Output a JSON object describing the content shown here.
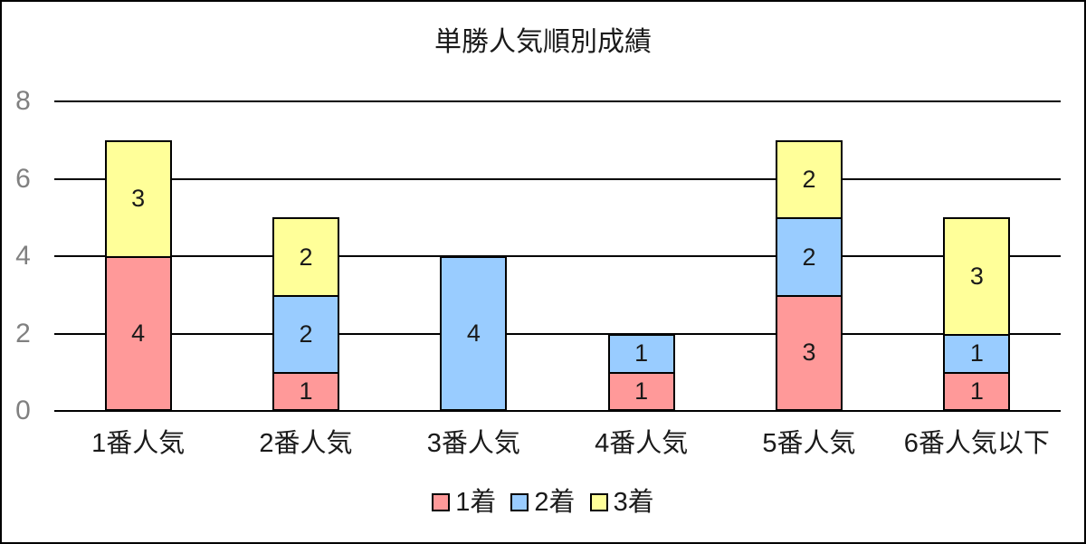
{
  "title": "単勝人気順別成績",
  "colors": {
    "first_place": "#FF9999",
    "second_place": "#99CCFF",
    "third_place": "#FFFF99",
    "grid": "#000000",
    "axis_tick_label": "#808080",
    "text": "#1a1a1a",
    "background": "#ffffff"
  },
  "chart_data": {
    "type": "bar",
    "stacked": true,
    "title": "単勝人気順別成績",
    "categories": [
      "1番人気",
      "2番人気",
      "3番人気",
      "4番人気",
      "5番人気",
      "6番人気以下"
    ],
    "series": [
      {
        "name": "1着",
        "color": "#FF9999",
        "values": [
          4,
          1,
          0,
          1,
          3,
          1
        ]
      },
      {
        "name": "2着",
        "color": "#99CCFF",
        "values": [
          0,
          2,
          4,
          1,
          2,
          1
        ]
      },
      {
        "name": "3着",
        "color": "#FFFF99",
        "values": [
          3,
          2,
          0,
          0,
          2,
          3
        ]
      }
    ],
    "xlabel": "",
    "ylabel": "",
    "ylim": [
      0,
      8
    ],
    "yticks": [
      0,
      2,
      4,
      6,
      8
    ],
    "grid": true,
    "legend_position": "bottom"
  }
}
